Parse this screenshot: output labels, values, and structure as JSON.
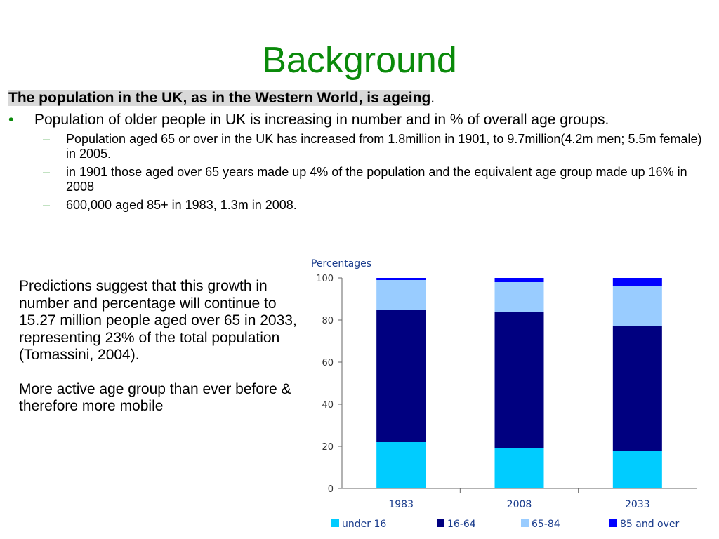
{
  "slide": {
    "title": "Background",
    "intro_text": "The population in the UK, as in the Western World, is ageing",
    "intro_suffix": ".",
    "bullet1": "Population of older people in UK is increasing in number and in % of overall age groups.",
    "subbullets": [
      "Population aged 65 or over in the UK has increased from 1.8million in 1901, to 9.7million(4.2m men; 5.5m female) in 2005.",
      "in 1901 those aged over 65 years made up 4% of the population and the equivalent age group made up 16% in 2008",
      "600,000 aged 85+ in 1983, 1.3m in 2008."
    ],
    "bullet_marker": "•",
    "sub_marker": "–",
    "side_para1": "Predictions suggest that this growth in number and percentage will continue to 15.27 million people aged over 65 in 2033, representing 23% of the total population (Tomassini, 2004).",
    "side_para2": "More active age group than ever before & therefore more mobile"
  },
  "colors": {
    "title": "#0a8a0a",
    "under16": "#00ccff",
    "age16_64": "#000080",
    "age65_84": "#99ccff",
    "age85plus": "#0000ff",
    "axis": "#666666"
  },
  "chart_data": {
    "type": "bar",
    "stacked": true,
    "ylabel": "Percentages",
    "ylim": [
      0,
      100
    ],
    "yticks": [
      0,
      20,
      40,
      60,
      80,
      100
    ],
    "categories": [
      "1983",
      "2008",
      "2033"
    ],
    "series": [
      {
        "name": "under 16",
        "values": [
          22,
          19,
          18
        ],
        "color": "#00ccff"
      },
      {
        "name": "16-64",
        "values": [
          63,
          65,
          59
        ],
        "color": "#000080"
      },
      {
        "name": "65-84",
        "values": [
          14,
          14,
          19
        ],
        "color": "#99ccff"
      },
      {
        "name": "85 and over",
        "values": [
          1,
          2,
          4
        ],
        "color": "#0000ff"
      }
    ],
    "legend_position": "bottom",
    "grid": false
  }
}
